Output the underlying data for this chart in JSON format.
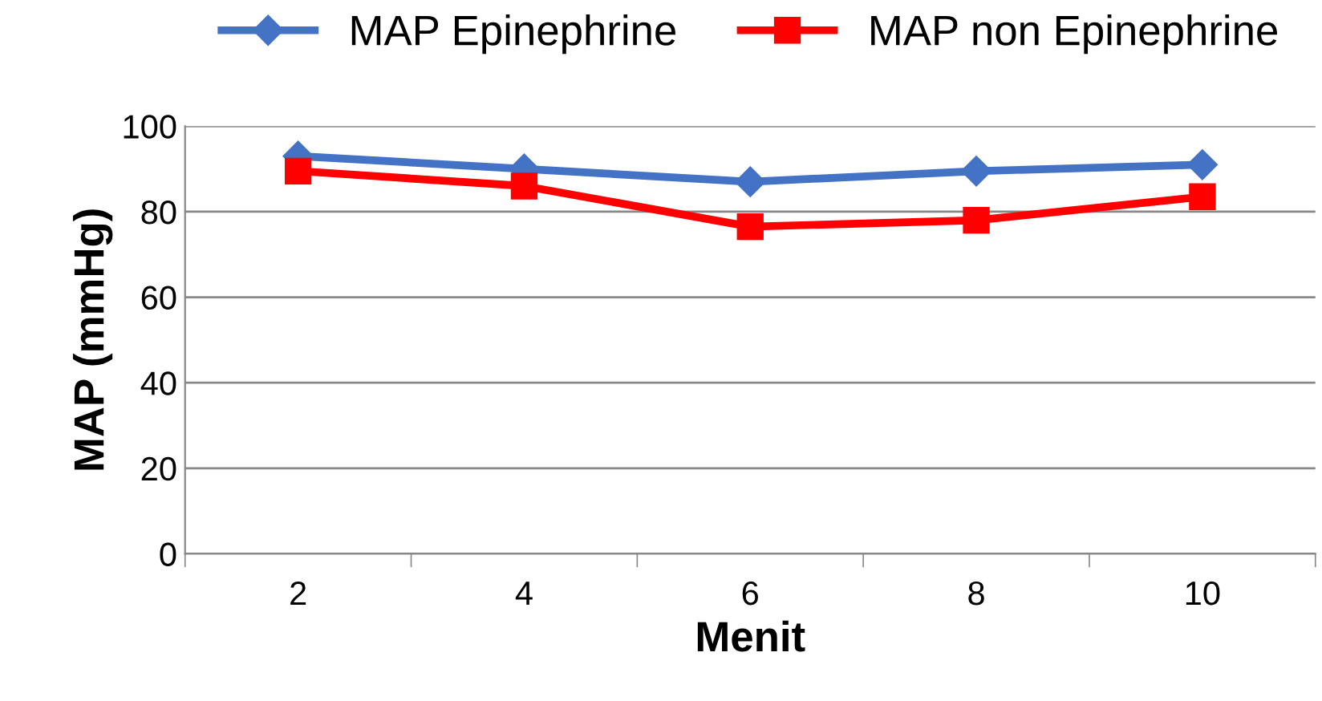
{
  "chart_data": {
    "type": "line",
    "xlabel": "Menit",
    "ylabel": "MAP (mmHg)",
    "categories": [
      "2",
      "4",
      "6",
      "8",
      "10"
    ],
    "series": [
      {
        "name": "MAP Epinephrine",
        "color": "#4472c4",
        "marker": "diamond",
        "values": [
          93,
          90,
          87,
          89.5,
          91
        ]
      },
      {
        "name": "MAP non Epinephrine",
        "color": "#ff0000",
        "marker": "square",
        "values": [
          89.5,
          86,
          76.5,
          78,
          83.5
        ]
      }
    ],
    "ylim": [
      0,
      100
    ],
    "yticks": [
      0,
      20,
      40,
      60,
      80,
      100
    ],
    "grid": "y",
    "legend": "top"
  }
}
